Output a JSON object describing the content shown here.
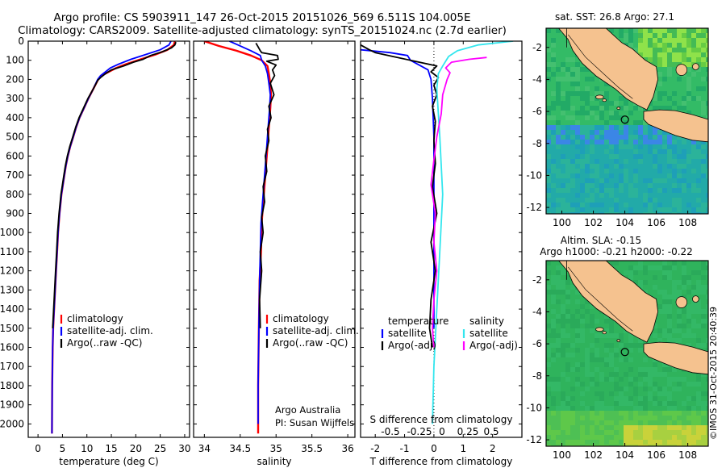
{
  "header": {
    "line1": "Argo profile: CS 5903911_147 26-Oct-2015 20151026_569 6.511S 104.005E",
    "line2": "Climatology: CARS2009. Satellite-adjusted climatology: synTS_20151024.nc (2.7d earlier)"
  },
  "side_label": "©IMOS 31-Oct-2015 20:40:39",
  "colors": {
    "climatology": "#ff0000",
    "satellite": "#0000ff",
    "argo": "#000000",
    "sal_satellite": "#33e6ee",
    "sal_argo": "#ff00ff",
    "land": "#f5c28f"
  },
  "chart_data": [
    {
      "type": "line",
      "xlabel": "temperature (deg C)",
      "ylabel": "",
      "xlim": [
        -2,
        31
      ],
      "ylim": [
        2070,
        0
      ],
      "xticks": [
        0,
        5,
        10,
        15,
        20,
        25,
        30
      ],
      "yticks": [
        0,
        100,
        200,
        300,
        400,
        500,
        600,
        700,
        800,
        900,
        1000,
        1100,
        1200,
        1300,
        1400,
        1500,
        1600,
        1700,
        1800,
        1900,
        2000
      ],
      "legend": [
        "climatology",
        "satellite-adj. clim.",
        "Argo(..raw -QC)"
      ],
      "series": [
        {
          "name": "climatology",
          "color": "#ff0000",
          "x": [
            28.0,
            27.8,
            26.5,
            24.0,
            21.0,
            18.0,
            16.0,
            14.5,
            13.0,
            12.3,
            11.3,
            10.3,
            9.4,
            8.5,
            7.8,
            7.2,
            6.6,
            6.1,
            5.7,
            5.4,
            5.1,
            4.8,
            4.6,
            4.4,
            4.1,
            3.9,
            3.7,
            3.5,
            3.3,
            3.1,
            3.0,
            2.9,
            2.85
          ],
          "y": [
            0,
            20,
            45,
            70,
            95,
            120,
            140,
            160,
            180,
            200,
            250,
            300,
            350,
            400,
            450,
            500,
            550,
            600,
            650,
            700,
            750,
            800,
            850,
            900,
            1000,
            1100,
            1200,
            1300,
            1400,
            1500,
            1600,
            1800,
            2050
          ]
        },
        {
          "name": "satellite-adj. clim.",
          "color": "#0000ff",
          "x": [
            27.2,
            26.8,
            25.0,
            22.0,
            19.0,
            16.5,
            14.8,
            13.8,
            12.8,
            12.2,
            11.3,
            10.3,
            9.4,
            8.5,
            7.8,
            7.2,
            6.6,
            6.1,
            5.7,
            5.4,
            5.1,
            4.8,
            4.6,
            4.4,
            4.1,
            3.9,
            3.7,
            3.5,
            3.3,
            3.1,
            3.0,
            2.9,
            2.85
          ],
          "y": [
            0,
            20,
            45,
            70,
            95,
            120,
            140,
            160,
            180,
            200,
            250,
            300,
            350,
            400,
            450,
            500,
            550,
            600,
            650,
            700,
            750,
            800,
            850,
            900,
            1000,
            1100,
            1200,
            1300,
            1400,
            1500,
            1600,
            1800,
            2050
          ]
        },
        {
          "name": "Argo(..raw -QC)",
          "color": "#000000",
          "x": [
            28.2,
            28.0,
            27.3,
            25.5,
            23.0,
            21.5,
            19.5,
            17.5,
            15.0,
            13.8,
            12.8,
            12.2,
            11.3,
            10.2,
            9.3,
            8.4,
            7.7,
            7.1,
            6.5,
            6.0,
            5.6,
            5.3,
            5.0,
            4.7,
            4.5,
            4.3,
            4.0,
            3.8,
            3.6,
            3.4,
            3.2,
            3.0
          ],
          "y": [
            5,
            20,
            35,
            55,
            75,
            95,
            110,
            130,
            150,
            170,
            190,
            205,
            250,
            300,
            350,
            400,
            450,
            500,
            550,
            600,
            650,
            700,
            750,
            800,
            850,
            900,
            1000,
            1100,
            1200,
            1300,
            1400,
            1500
          ]
        }
      ]
    },
    {
      "type": "line",
      "xlabel": "salinity",
      "xlim": [
        33.85,
        36.1
      ],
      "ylim": [
        2070,
        0
      ],
      "xticks": [
        34,
        34.5,
        35,
        35.5,
        36
      ],
      "legend": [
        "climatology",
        "satellite-adj. clim.",
        "Argo(..raw -QC)"
      ],
      "annotations": [
        "Argo Australia",
        "PI: Susan Wijffels"
      ],
      "series": [
        {
          "name": "climatology",
          "color": "#ff0000",
          "x": [
            34.0,
            34.2,
            34.45,
            34.65,
            34.8,
            34.88,
            34.9,
            34.92,
            34.93,
            34.92,
            34.9,
            34.88,
            34.86,
            34.84,
            34.82,
            34.8,
            34.79,
            34.77,
            34.76,
            34.75,
            34.75
          ],
          "y": [
            0,
            25,
            50,
            75,
            100,
            130,
            170,
            220,
            280,
            350,
            450,
            550,
            650,
            750,
            850,
            950,
            1100,
            1250,
            1500,
            1800,
            2050
          ]
        },
        {
          "name": "satellite-adj. clim.",
          "color": "#0000ff",
          "x": [
            34.35,
            34.5,
            34.65,
            34.78,
            34.8,
            34.85,
            34.88,
            34.9,
            34.92,
            34.91,
            34.89,
            34.87,
            34.85,
            34.83,
            34.81,
            34.79,
            34.78,
            34.77,
            34.76,
            34.75,
            34.75
          ],
          "y": [
            0,
            25,
            50,
            75,
            100,
            130,
            170,
            220,
            280,
            350,
            450,
            550,
            650,
            750,
            850,
            950,
            1100,
            1250,
            1500,
            1800,
            2000
          ]
        },
        {
          "name": "Argo(..raw -QC)",
          "color": "#000000",
          "x": [
            34.72,
            34.75,
            34.78,
            34.8,
            35.02,
            35.03,
            34.87,
            35.0,
            34.95,
            34.98,
            34.92,
            34.97,
            34.9,
            34.93,
            34.88,
            34.9,
            34.85,
            34.87,
            34.82,
            34.84,
            34.8,
            34.82,
            34.78,
            34.8,
            34.77,
            34.78
          ],
          "y": [
            10,
            30,
            50,
            60,
            75,
            95,
            105,
            125,
            150,
            180,
            220,
            280,
            340,
            400,
            460,
            520,
            600,
            680,
            760,
            840,
            920,
            1000,
            1100,
            1200,
            1350,
            1500
          ]
        }
      ]
    },
    {
      "type": "line",
      "xlabel": "T difference from climatology",
      "secondary_xlabel": "S difference from climatology",
      "xlim": [
        -2.5,
        3.0
      ],
      "ylim": [
        2070,
        0
      ],
      "xticks": [
        -2,
        -1,
        0,
        1,
        2
      ],
      "secondary_xticks": [
        "-0.5",
        "-0.25",
        "0",
        "0.25",
        "0.5"
      ],
      "legend_headers": [
        "temperature",
        "salinity"
      ],
      "legend": [
        "satellite",
        "Argo(-adj)",
        "satellite",
        "Argo(-adj)"
      ],
      "series": [
        {
          "name": "satellite",
          "group": "temperature",
          "color": "#0000ff",
          "x": [
            -2.5,
            -1.5,
            -0.9,
            -0.8,
            -0.2,
            -0.1,
            -0.05,
            0.0,
            0.0,
            0.0,
            0.0
          ],
          "y": [
            45,
            60,
            75,
            100,
            150,
            200,
            300,
            500,
            800,
            1200,
            1500
          ]
        },
        {
          "name": "Argo(-adj)",
          "group": "temperature",
          "color": "#000000",
          "x": [
            -2.5,
            -2.2,
            -2.0,
            -1.4,
            0.1,
            -0.1,
            0.15,
            0.0,
            0.1,
            -0.05,
            0.05,
            0.0,
            0.05,
            -0.05,
            0.1,
            -0.1,
            0.05,
            -0.1,
            -0.15,
            -0.05
          ],
          "y": [
            20,
            45,
            60,
            80,
            130,
            160,
            190,
            230,
            280,
            340,
            420,
            520,
            640,
            760,
            900,
            1050,
            1200,
            1350,
            1500,
            1600
          ]
        },
        {
          "name": "satellite",
          "group": "salinity",
          "color": "#33e6ee",
          "x": [
            2.7,
            1.5,
            0.8,
            0.5,
            0.3,
            0.15,
            0.1,
            0.2,
            0.3,
            0.2,
            0.1,
            0.0,
            -0.05
          ],
          "y": [
            0,
            20,
            50,
            80,
            130,
            170,
            250,
            500,
            800,
            1100,
            1400,
            1700,
            2000
          ]
        },
        {
          "name": "Argo(-adj)",
          "group": "salinity",
          "color": "#ff00ff",
          "x": [
            1.8,
            1.2,
            0.6,
            0.5,
            0.4,
            0.55,
            0.45,
            0.3,
            0.25,
            0.1,
            0.0,
            -0.1,
            0.05,
            0.0,
            0.1,
            0.0,
            -0.05,
            0.0
          ],
          "y": [
            85,
            95,
            110,
            125,
            140,
            165,
            200,
            280,
            380,
            500,
            620,
            750,
            900,
            1050,
            1200,
            1350,
            1500,
            1600
          ]
        }
      ]
    },
    {
      "type": "heatmap",
      "title": "sat. SST: 26.8 Argo: 27.1",
      "xlim": [
        99,
        109.3
      ],
      "ylim": [
        -12.4,
        -0.8
      ],
      "xticks": [
        100,
        102,
        104,
        106,
        108
      ],
      "yticks": [
        -2,
        -4,
        -6,
        -8,
        -10,
        -12
      ],
      "marker": {
        "lon": 104.005,
        "lat": -6.511
      }
    },
    {
      "type": "heatmap",
      "title": "Altim. SLA: -0.15",
      "subtitle": "Argo h1000: -0.21 h2000: -0.22",
      "xlim": [
        99,
        109.3
      ],
      "ylim": [
        -12.4,
        -0.8
      ],
      "xticks": [
        100,
        102,
        104,
        106,
        108
      ],
      "yticks": [
        -2,
        -4,
        -6,
        -8,
        -10,
        -12
      ],
      "marker": {
        "lon": 104.005,
        "lat": -6.511
      }
    }
  ]
}
